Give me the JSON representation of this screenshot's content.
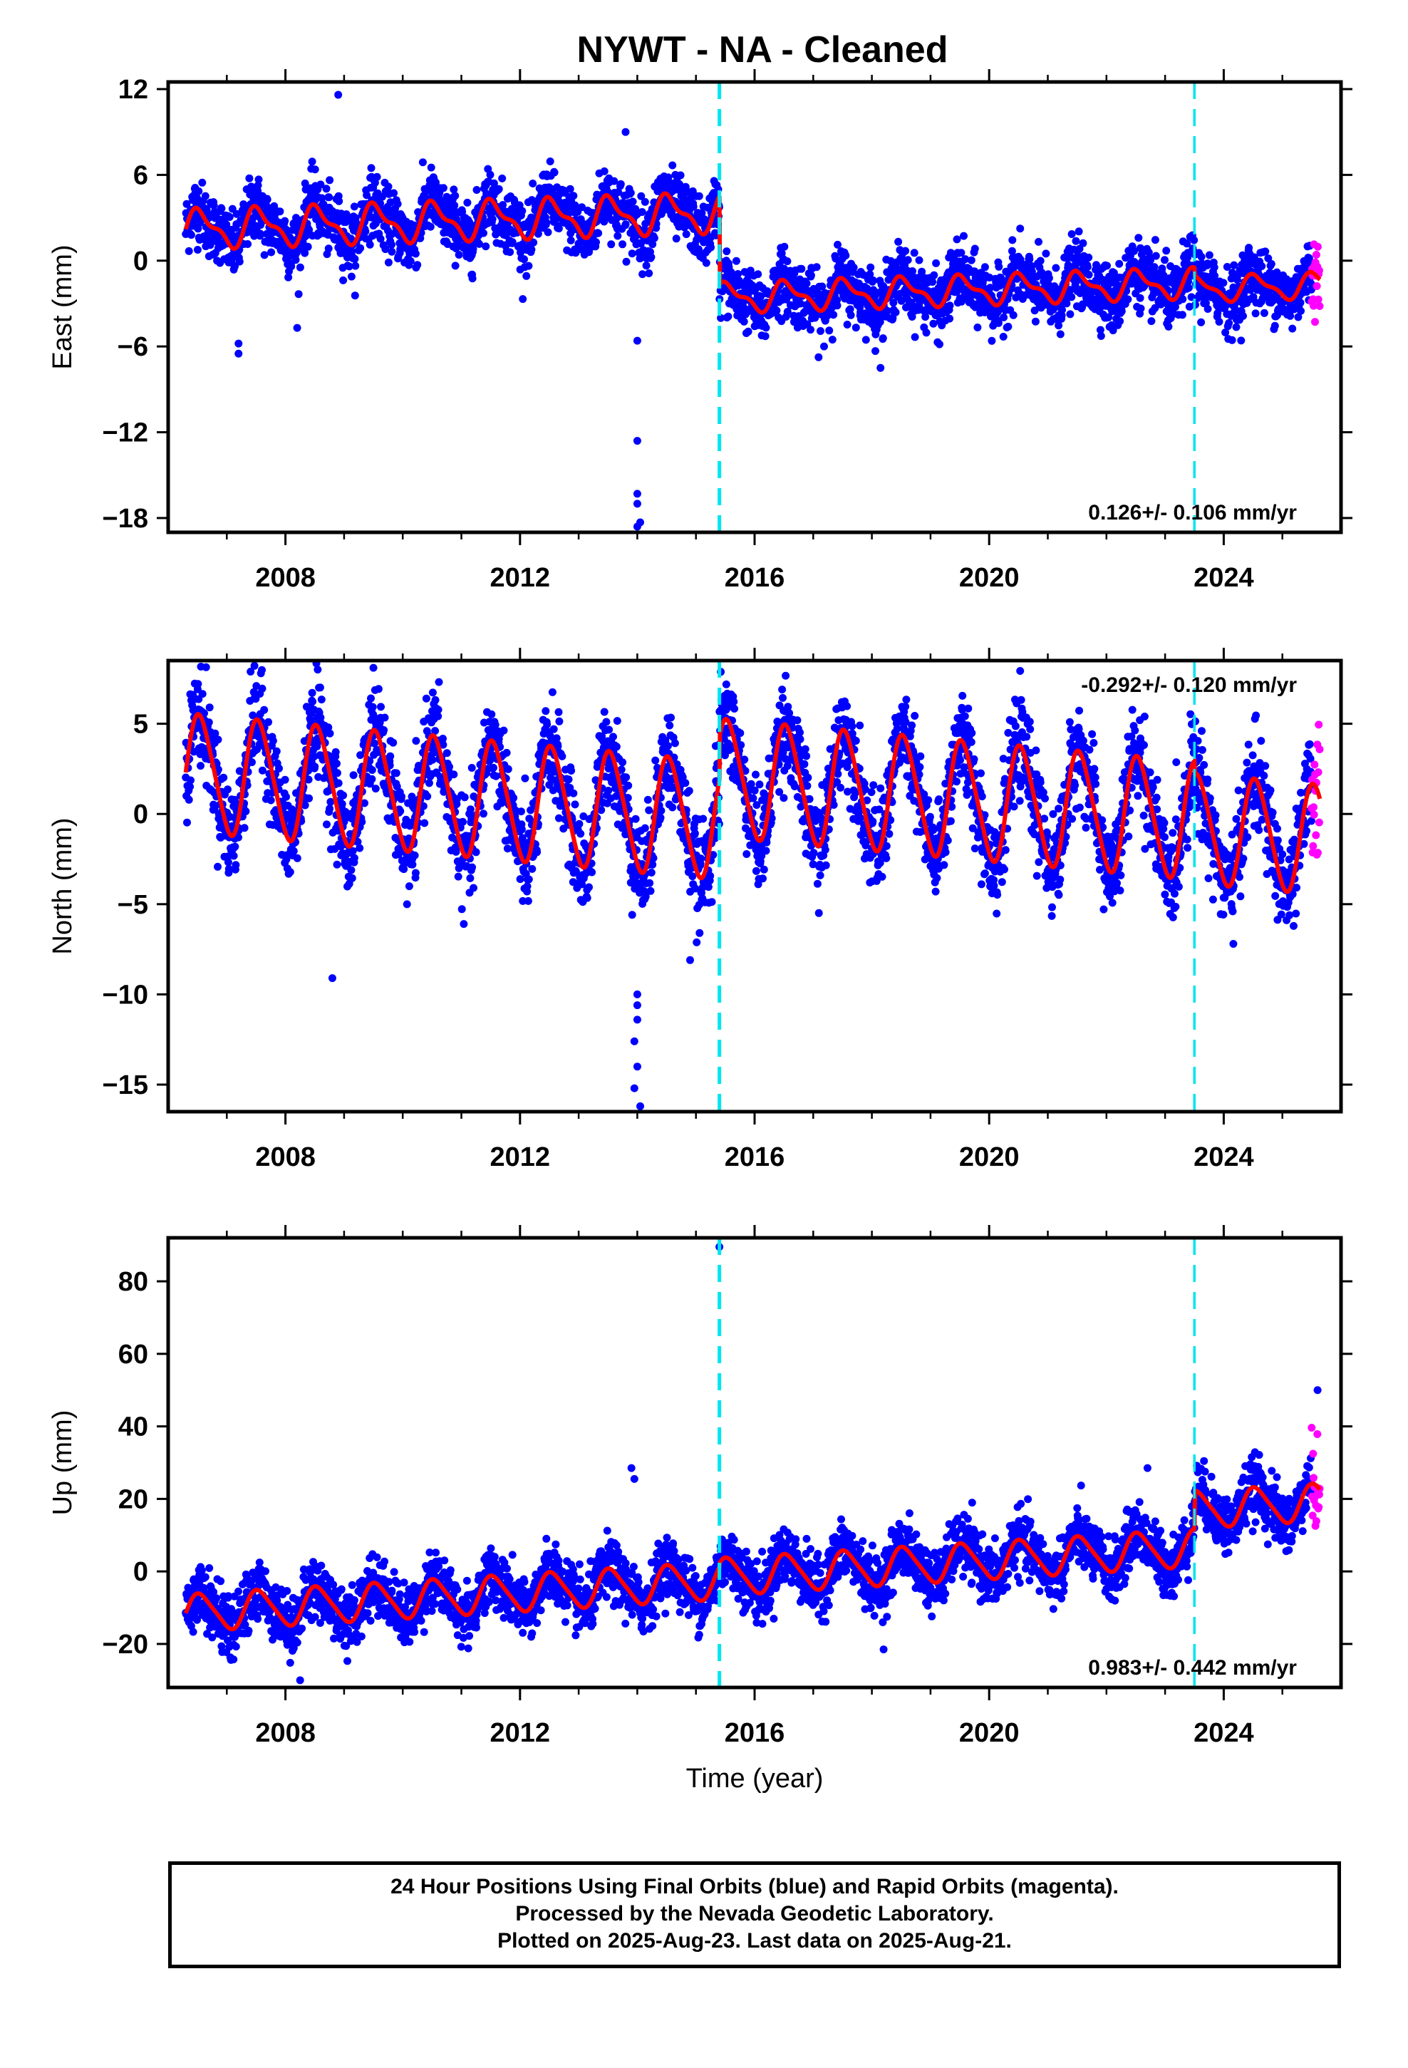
{
  "chart_data": [
    {
      "type": "scatter",
      "title": "NYWT  - NA - Cleaned",
      "ylabel": "East (mm)",
      "xlim": [
        2006.0,
        2026.0
      ],
      "ylim": [
        -19,
        12.5
      ],
      "yticks": [
        -18,
        -12,
        -6,
        0,
        6,
        12
      ],
      "xticks": [
        2008,
        2012,
        2016,
        2020,
        2024
      ],
      "xtick_labels": [
        "2008",
        "2012",
        "2016",
        "2020",
        "2024"
      ],
      "rate_text": "0.126+/- 0.106 mm/yr",
      "rate_position": "bottom-right",
      "steps": [
        2015.4,
        2023.5
      ],
      "data_span": [
        2006.3,
        2025.64
      ],
      "rapid_start": 2025.5,
      "model": {
        "segments": [
          {
            "start": 2006.3,
            "end": 2015.4,
            "offset_at_start": 2.2,
            "rate": 0.126,
            "annual_amp": 1.2,
            "semi_amp": 0.5
          },
          {
            "start": 2015.4,
            "end": 2023.5,
            "offset_at_start": -2.6,
            "rate": 0.126,
            "annual_amp": 0.9,
            "semi_amp": 0.4
          },
          {
            "start": 2023.5,
            "end": 2025.64,
            "offset_at_start": -2.0,
            "rate": 0.126,
            "annual_amp": 0.8,
            "semi_amp": 0.3
          }
        ],
        "scatter_sd": 1.1
      },
      "outliers": [
        {
          "x": 2008.9,
          "y": 11.6
        },
        {
          "x": 2007.2,
          "y": -6.5
        },
        {
          "x": 2007.2,
          "y": -5.8
        },
        {
          "x": 2008.2,
          "y": -4.7
        },
        {
          "x": 2014.0,
          "y": -12.6
        },
        {
          "x": 2014.0,
          "y": -16.3
        },
        {
          "x": 2014.0,
          "y": -17.0
        },
        {
          "x": 2014.05,
          "y": -18.3
        },
        {
          "x": 2014.0,
          "y": -18.6
        },
        {
          "x": 2013.8,
          "y": 9.0
        },
        {
          "x": 2014.0,
          "y": -5.6
        }
      ],
      "colors": {
        "final": "#0000ff",
        "rapid": "#ff00ff",
        "model": "#ff0000",
        "step": "#00e5ee"
      }
    },
    {
      "type": "scatter",
      "ylabel": "North (mm)",
      "xlim": [
        2006.0,
        2026.0
      ],
      "ylim": [
        -16.5,
        8.5
      ],
      "yticks": [
        -15,
        -10,
        -5,
        0,
        5
      ],
      "xticks": [
        2008,
        2012,
        2016,
        2020,
        2024
      ],
      "xtick_labels": [
        "2008",
        "2012",
        "2016",
        "2020",
        "2024"
      ],
      "rate_text": "-0.292+/- 0.120 mm/yr",
      "rate_position": "top-right",
      "steps": [
        2015.4,
        2023.5
      ],
      "data_span": [
        2006.3,
        2025.64
      ],
      "rapid_start": 2025.5,
      "model": {
        "segments": [
          {
            "start": 2006.3,
            "end": 2015.4,
            "offset_at_start": 2.3,
            "rate": -0.292,
            "annual_amp": 3.2,
            "semi_amp": 0.4
          },
          {
            "start": 2015.4,
            "end": 2023.5,
            "offset_at_start": 2.0,
            "rate": -0.292,
            "annual_amp": 3.2,
            "semi_amp": 0.4
          },
          {
            "start": 2023.5,
            "end": 2025.64,
            "offset_at_start": -0.8,
            "rate": -0.292,
            "annual_amp": 3.0,
            "semi_amp": 0.3
          }
        ],
        "scatter_sd": 1.3
      },
      "outliers": [
        {
          "x": 2008.8,
          "y": -9.1
        },
        {
          "x": 2014.0,
          "y": -10.0
        },
        {
          "x": 2014.0,
          "y": -10.6
        },
        {
          "x": 2014.0,
          "y": -11.4
        },
        {
          "x": 2013.95,
          "y": -12.6
        },
        {
          "x": 2014.0,
          "y": -14.0
        },
        {
          "x": 2013.95,
          "y": -15.2
        },
        {
          "x": 2014.05,
          "y": -16.2
        },
        {
          "x": 2014.9,
          "y": -8.1
        },
        {
          "x": 2008.55,
          "y": 8.0
        },
        {
          "x": 2009.5,
          "y": 8.1
        }
      ],
      "colors": {
        "final": "#0000ff",
        "rapid": "#ff00ff",
        "model": "#ff0000",
        "step": "#00e5ee"
      }
    },
    {
      "type": "scatter",
      "ylabel": "Up (mm)",
      "xlabel": "Time (year)",
      "xlim": [
        2006.0,
        2026.0
      ],
      "ylim": [
        -32,
        92
      ],
      "yticks": [
        -20,
        0,
        20,
        40,
        60,
        80
      ],
      "xticks": [
        2008,
        2012,
        2016,
        2020,
        2024
      ],
      "xtick_labels": [
        "2008",
        "2012",
        "2016",
        "2020",
        "2024"
      ],
      "rate_text": "0.983+/- 0.442 mm/yr",
      "rate_position": "bottom-right",
      "steps": [
        2015.4,
        2023.5
      ],
      "data_span": [
        2006.3,
        2025.64
      ],
      "rapid_start": 2025.5,
      "model": {
        "segments": [
          {
            "start": 2006.3,
            "end": 2015.4,
            "offset_at_start": -11.5,
            "rate": 0.983,
            "annual_amp": 5.0,
            "semi_amp": 0.8
          },
          {
            "start": 2015.4,
            "end": 2023.5,
            "offset_at_start": -1.5,
            "rate": 0.983,
            "annual_amp": 5.0,
            "semi_amp": 0.8
          },
          {
            "start": 2023.5,
            "end": 2025.64,
            "offset_at_start": 17.0,
            "rate": 0.983,
            "annual_amp": 5.0,
            "semi_amp": 0.8
          }
        ],
        "scatter_sd": 4.0
      },
      "outliers": [
        {
          "x": 2015.4,
          "y": 89.5
        },
        {
          "x": 2013.9,
          "y": 28.5
        },
        {
          "x": 2013.95,
          "y": 25.5
        },
        {
          "x": 2008.25,
          "y": -30.0
        },
        {
          "x": 2025.6,
          "y": 50.0
        },
        {
          "x": 2022.7,
          "y": 28.5
        },
        {
          "x": 2018.2,
          "y": -21.5
        }
      ],
      "colors": {
        "final": "#0000ff",
        "rapid": "#ff00ff",
        "model": "#ff0000",
        "step": "#00e5ee"
      }
    }
  ],
  "footer": {
    "line1": "24 Hour Positions Using Final Orbits (blue) and Rapid Orbits (magenta).",
    "line2": "Processed by the Nevada Geodetic Laboratory.",
    "line3": "Plotted on 2025-Aug-23. Last data on 2025-Aug-21."
  }
}
